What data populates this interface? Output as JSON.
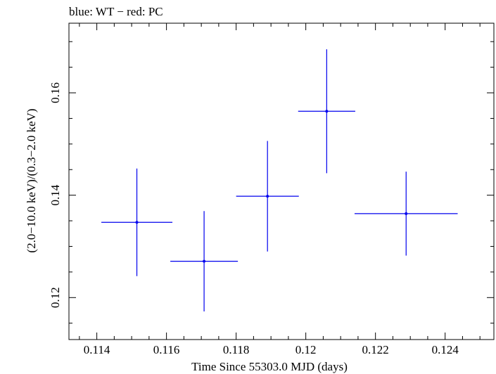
{
  "chart_data": {
    "type": "scatter",
    "title": "blue: WT − red: PC",
    "xlabel": "Time Since 55303.0 MJD (days)",
    "ylabel": "(2.0−10.0 keV)/(0.3−2.0 keV)",
    "xlim": [
      0.1132,
      0.1254
    ],
    "ylim": [
      0.1118,
      0.1736
    ],
    "x_ticks": [
      {
        "value": 0.114,
        "label": "0.114"
      },
      {
        "value": 0.116,
        "label": "0.116"
      },
      {
        "value": 0.118,
        "label": "0.118"
      },
      {
        "value": 0.12,
        "label": "0.12"
      },
      {
        "value": 0.122,
        "label": "0.122"
      },
      {
        "value": 0.124,
        "label": "0.124"
      }
    ],
    "y_ticks": [
      {
        "value": 0.12,
        "label": "0.12"
      },
      {
        "value": 0.14,
        "label": "0.14"
      },
      {
        "value": 0.16,
        "label": "0.16"
      }
    ],
    "series": [
      {
        "name": "WT",
        "color": "#0000ee",
        "points": [
          {
            "x": 0.11515,
            "xerr": 0.00102,
            "y": 0.1347,
            "yerr": 0.0105
          },
          {
            "x": 0.11708,
            "xerr": 0.00097,
            "y": 0.1271,
            "yerr": 0.0098
          },
          {
            "x": 0.1189,
            "xerr": 0.0009,
            "y": 0.1398,
            "yerr": 0.0108
          },
          {
            "x": 0.1206,
            "xerr": 0.00082,
            "y": 0.1564,
            "yerr": 0.0121
          },
          {
            "x": 0.12288,
            "xerr": 0.00148,
            "y": 0.1364,
            "yerr": 0.0082
          }
        ]
      }
    ]
  }
}
